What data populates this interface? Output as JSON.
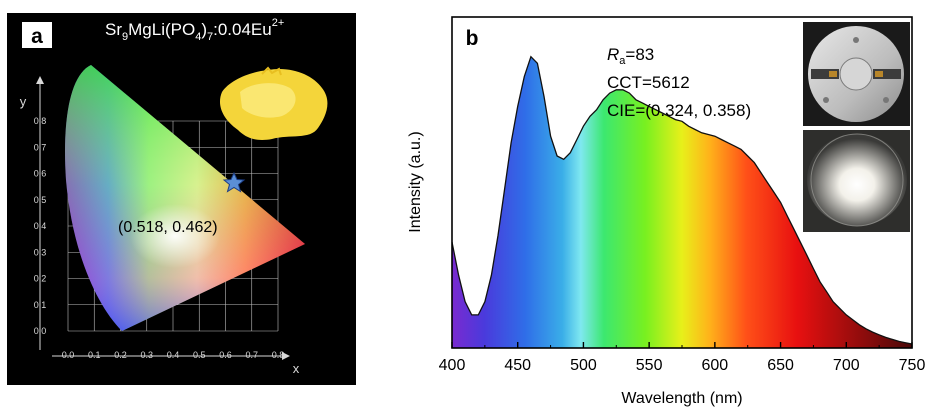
{
  "panel_a": {
    "label": "a",
    "formula": {
      "parts": [
        {
          "text": "Sr",
          "pos": "normal"
        },
        {
          "text": "9",
          "pos": "sub"
        },
        {
          "text": "MgLi(PO",
          "pos": "normal"
        },
        {
          "text": "4",
          "pos": "sub"
        },
        {
          "text": ")",
          "pos": "normal"
        },
        {
          "text": "7",
          "pos": "sub"
        },
        {
          "text": ":0.04Eu",
          "pos": "normal"
        },
        {
          "text": "2+",
          "pos": "super"
        }
      ]
    },
    "annotation": "(0.518, 0.462)",
    "photo_icon": "yellow-phosphor-powder-photo",
    "marker_icon": "star-marker",
    "background_color": "#000000",
    "grid_color": "#bfbfbf",
    "marker_color": "#5b8fd6"
  },
  "panel_b": {
    "label": "b",
    "ra_symbol": "R",
    "ra_subscript": "a",
    "ra_value": "=83",
    "cct": "CCT=5612",
    "cie": "CIE=(0.324, 0.358)",
    "photo_top_icon": "led-device-photo",
    "photo_bottom_icon": "lit-led-photo"
  },
  "chart_data": [
    {
      "type": "scatter",
      "name": "CIE 1931 chromaticity diagram",
      "xlabel": "x",
      "ylabel": "y",
      "xlim": [
        0.0,
        0.8
      ],
      "ylim": [
        0.0,
        0.8
      ],
      "xticks": [
        "0.0",
        "0.1",
        "0.2",
        "0.3",
        "0.4",
        "0.5",
        "0.6",
        "0.7",
        "0.8"
      ],
      "yticks": [
        "0.0",
        "0.1",
        "0.2",
        "0.3",
        "0.4",
        "0.5",
        "0.6",
        "0.7",
        "0.8"
      ],
      "grid": true,
      "points": [
        {
          "x": 0.518,
          "y": 0.462,
          "label": "(0.518, 0.462)"
        }
      ]
    },
    {
      "type": "line",
      "name": "Emission spectrum",
      "xlabel": "Wavelength (nm)",
      "ylabel": "Intensity (a.u.)",
      "xlim": [
        400,
        750
      ],
      "ylim": [
        0,
        1.0
      ],
      "xticks": [
        "400",
        "450",
        "500",
        "550",
        "600",
        "650",
        "700",
        "750"
      ],
      "yticks": [],
      "grid": false,
      "fill": "visible-spectrum gradient",
      "x": [
        400,
        405,
        410,
        415,
        420,
        425,
        430,
        435,
        440,
        445,
        450,
        455,
        460,
        465,
        470,
        475,
        480,
        485,
        490,
        495,
        500,
        505,
        510,
        515,
        520,
        525,
        530,
        535,
        540,
        545,
        550,
        555,
        560,
        565,
        570,
        575,
        580,
        585,
        590,
        595,
        600,
        605,
        610,
        615,
        620,
        625,
        630,
        635,
        640,
        645,
        650,
        655,
        660,
        665,
        670,
        675,
        680,
        685,
        690,
        695,
        700,
        705,
        710,
        715,
        720,
        725,
        730,
        735,
        740,
        745,
        750
      ],
      "y": [
        0.32,
        0.22,
        0.14,
        0.1,
        0.1,
        0.14,
        0.22,
        0.34,
        0.48,
        0.62,
        0.73,
        0.82,
        0.88,
        0.86,
        0.76,
        0.64,
        0.58,
        0.57,
        0.59,
        0.63,
        0.67,
        0.7,
        0.72,
        0.75,
        0.77,
        0.78,
        0.78,
        0.77,
        0.75,
        0.74,
        0.73,
        0.72,
        0.71,
        0.7,
        0.69,
        0.685,
        0.67,
        0.66,
        0.65,
        0.645,
        0.64,
        0.63,
        0.62,
        0.61,
        0.6,
        0.58,
        0.56,
        0.53,
        0.5,
        0.47,
        0.44,
        0.4,
        0.36,
        0.32,
        0.28,
        0.24,
        0.2,
        0.17,
        0.14,
        0.12,
        0.1,
        0.085,
        0.07,
        0.058,
        0.048,
        0.04,
        0.032,
        0.026,
        0.02,
        0.016,
        0.012
      ]
    }
  ]
}
